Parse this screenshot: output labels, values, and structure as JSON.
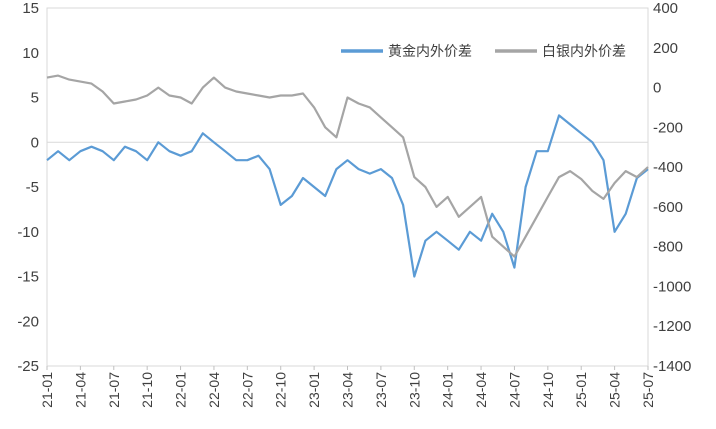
{
  "chart_data": {
    "type": "line",
    "legend_position": "top-right",
    "grid": false,
    "left_axis": {
      "min": -25,
      "max": 15,
      "ticks": [
        "15",
        "10",
        "5",
        "0",
        "-5",
        "-10",
        "-15",
        "-20",
        "-25"
      ]
    },
    "right_axis": {
      "min": -1400,
      "max": 400,
      "ticks": [
        "400",
        "200",
        "0",
        "-200",
        "-400",
        "-600",
        "-800",
        "-1000",
        "-1200",
        "-1400"
      ]
    },
    "x_ticks": [
      "21-01",
      "21-04",
      "21-07",
      "21-10",
      "22-01",
      "22-04",
      "22-07",
      "22-10",
      "23-01",
      "23-04",
      "23-07",
      "23-10",
      "24-01",
      "24-04",
      "24-07",
      "24-10",
      "25-01",
      "25-04",
      "25-07"
    ],
    "series": [
      {
        "name": "黄金内外价差",
        "axis": "left",
        "color": "#5B9BD5",
        "points": [
          [
            "21-01",
            -2
          ],
          [
            "21-02",
            -1
          ],
          [
            "21-03",
            -2
          ],
          [
            "21-04",
            -1
          ],
          [
            "21-05",
            -0.5
          ],
          [
            "21-06",
            -1
          ],
          [
            "21-07",
            -2
          ],
          [
            "21-08",
            -0.5
          ],
          [
            "21-09",
            -1
          ],
          [
            "21-10",
            -2
          ],
          [
            "21-11",
            0
          ],
          [
            "21-12",
            -1
          ],
          [
            "22-01",
            -1.5
          ],
          [
            "22-02",
            -1
          ],
          [
            "22-03",
            1
          ],
          [
            "22-04",
            0
          ],
          [
            "22-05",
            -1
          ],
          [
            "22-06",
            -2
          ],
          [
            "22-07",
            -2
          ],
          [
            "22-08",
            -1.5
          ],
          [
            "22-09",
            -3
          ],
          [
            "22-10",
            -7
          ],
          [
            "22-11",
            -6
          ],
          [
            "22-12",
            -4
          ],
          [
            "23-01",
            -5
          ],
          [
            "23-02",
            -6
          ],
          [
            "23-03",
            -3
          ],
          [
            "23-04",
            -2
          ],
          [
            "23-05",
            -3
          ],
          [
            "23-06",
            -3.5
          ],
          [
            "23-07",
            -3
          ],
          [
            "23-08",
            -4
          ],
          [
            "23-09",
            -7
          ],
          [
            "23-10",
            -15
          ],
          [
            "23-11",
            -11
          ],
          [
            "23-12",
            -10
          ],
          [
            "24-01",
            -11
          ],
          [
            "24-02",
            -12
          ],
          [
            "24-03",
            -10
          ],
          [
            "24-04",
            -11
          ],
          [
            "24-05",
            -8
          ],
          [
            "24-06",
            -10
          ],
          [
            "24-07",
            -14
          ],
          [
            "24-08",
            -5
          ],
          [
            "24-09",
            -1
          ],
          [
            "24-10",
            -1
          ],
          [
            "24-11",
            3
          ],
          [
            "24-12",
            2
          ],
          [
            "25-01",
            1
          ],
          [
            "25-02",
            0
          ],
          [
            "25-03",
            -2
          ],
          [
            "25-04",
            -10
          ],
          [
            "25-05",
            -8
          ],
          [
            "25-06",
            -4
          ],
          [
            "25-07",
            -3
          ]
        ]
      },
      {
        "name": "白银内外价差",
        "axis": "right",
        "color": "#A5A5A5",
        "points": [
          [
            "21-01",
            50
          ],
          [
            "21-02",
            60
          ],
          [
            "21-03",
            40
          ],
          [
            "21-04",
            30
          ],
          [
            "21-05",
            20
          ],
          [
            "21-06",
            -20
          ],
          [
            "21-07",
            -80
          ],
          [
            "21-08",
            -70
          ],
          [
            "21-09",
            -60
          ],
          [
            "21-10",
            -40
          ],
          [
            "21-11",
            0
          ],
          [
            "21-12",
            -40
          ],
          [
            "22-01",
            -50
          ],
          [
            "22-02",
            -80
          ],
          [
            "22-03",
            0
          ],
          [
            "22-04",
            50
          ],
          [
            "22-05",
            0
          ],
          [
            "22-06",
            -20
          ],
          [
            "22-07",
            -30
          ],
          [
            "22-08",
            -40
          ],
          [
            "22-09",
            -50
          ],
          [
            "22-10",
            -40
          ],
          [
            "22-11",
            -40
          ],
          [
            "22-12",
            -30
          ],
          [
            "23-01",
            -100
          ],
          [
            "23-02",
            -200
          ],
          [
            "23-03",
            -250
          ],
          [
            "23-04",
            -50
          ],
          [
            "23-05",
            -80
          ],
          [
            "23-06",
            -100
          ],
          [
            "23-07",
            -150
          ],
          [
            "23-08",
            -200
          ],
          [
            "23-09",
            -250
          ],
          [
            "23-10",
            -450
          ],
          [
            "23-11",
            -500
          ],
          [
            "23-12",
            -600
          ],
          [
            "24-01",
            -550
          ],
          [
            "24-02",
            -650
          ],
          [
            "24-03",
            -600
          ],
          [
            "24-04",
            -550
          ],
          [
            "24-05",
            -750
          ],
          [
            "24-06",
            -800
          ],
          [
            "24-07",
            -850
          ],
          [
            "24-08",
            -750
          ],
          [
            "24-09",
            -650
          ],
          [
            "24-10",
            -550
          ],
          [
            "24-11",
            -450
          ],
          [
            "24-12",
            -420
          ],
          [
            "25-01",
            -460
          ],
          [
            "25-02",
            -520
          ],
          [
            "25-03",
            -560
          ],
          [
            "25-04",
            -480
          ],
          [
            "25-05",
            -420
          ],
          [
            "25-06",
            -450
          ],
          [
            "25-07",
            -400
          ]
        ]
      }
    ]
  }
}
